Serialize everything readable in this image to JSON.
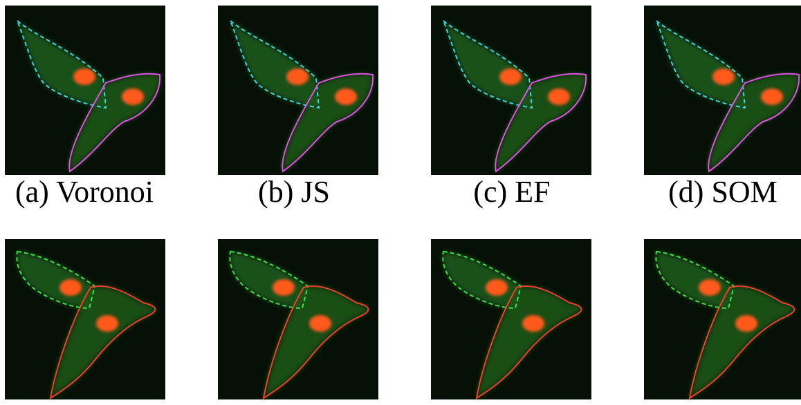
{
  "captions": [
    "(a) Voronoi",
    "(b) JS",
    "(c) EF",
    "(d) SOM"
  ]
}
